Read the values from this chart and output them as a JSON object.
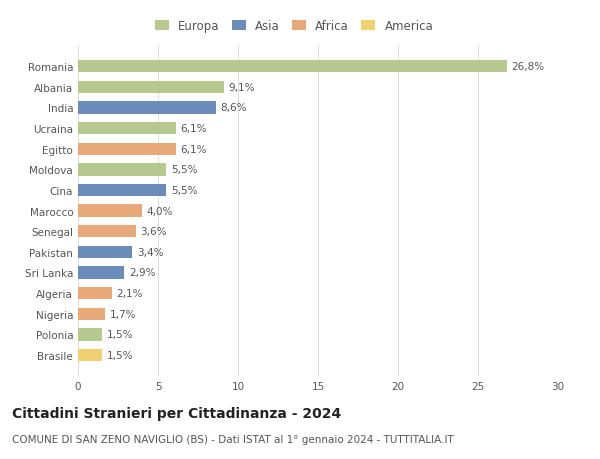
{
  "countries": [
    "Romania",
    "Albania",
    "India",
    "Ucraina",
    "Egitto",
    "Moldova",
    "Cina",
    "Marocco",
    "Senegal",
    "Pakistan",
    "Sri Lanka",
    "Algeria",
    "Nigeria",
    "Polonia",
    "Brasile"
  ],
  "values": [
    26.8,
    9.1,
    8.6,
    6.1,
    6.1,
    5.5,
    5.5,
    4.0,
    3.6,
    3.4,
    2.9,
    2.1,
    1.7,
    1.5,
    1.5
  ],
  "labels": [
    "26,8%",
    "9,1%",
    "8,6%",
    "6,1%",
    "6,1%",
    "5,5%",
    "5,5%",
    "4,0%",
    "3,6%",
    "3,4%",
    "2,9%",
    "2,1%",
    "1,7%",
    "1,5%",
    "1,5%"
  ],
  "continents": [
    "Europa",
    "Europa",
    "Asia",
    "Europa",
    "Africa",
    "Europa",
    "Asia",
    "Africa",
    "Africa",
    "Asia",
    "Asia",
    "Africa",
    "Africa",
    "Europa",
    "America"
  ],
  "colors": {
    "Europa": "#b5c98e",
    "Asia": "#6b8cba",
    "Africa": "#e8a97a",
    "America": "#f0d070"
  },
  "xlim": [
    0,
    30
  ],
  "xticks": [
    0,
    5,
    10,
    15,
    20,
    25,
    30
  ],
  "title": "Cittadini Stranieri per Cittadinanza - 2024",
  "subtitle": "COMUNE DI SAN ZENO NAVIGLIO (BS) - Dati ISTAT al 1° gennaio 2024 - TUTTITALIA.IT",
  "background_color": "#ffffff",
  "grid_color": "#dddddd",
  "label_fontsize": 7.5,
  "tick_fontsize": 7.5,
  "legend_fontsize": 8.5,
  "title_fontsize": 10,
  "subtitle_fontsize": 7.5
}
